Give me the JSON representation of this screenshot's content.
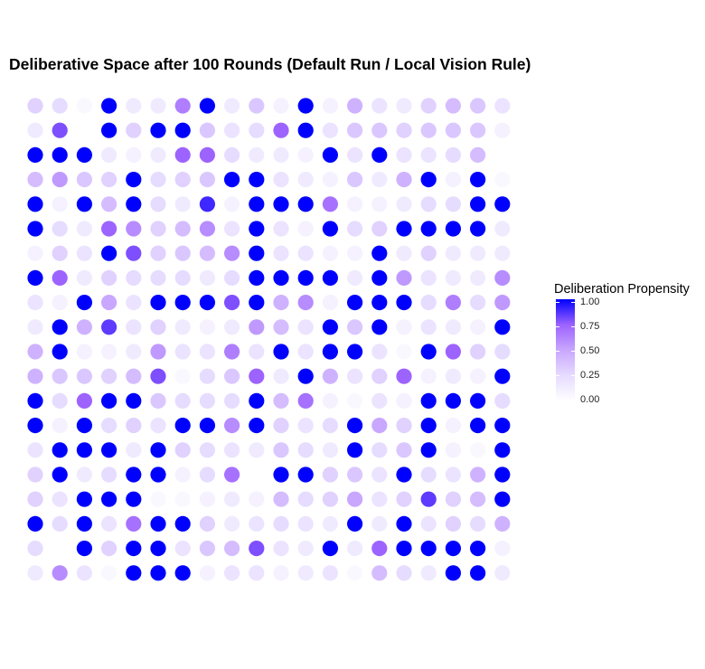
{
  "chart_data": {
    "type": "scatter",
    "title": "Deliberative Space after 100 Rounds (Default Run / Local Vision Rule)",
    "grid": false,
    "legend_position": "right",
    "color_scale": {
      "low": "#ffffff",
      "high": "#0000ff"
    },
    "legend": {
      "title": "Deliberation Propensity",
      "ticks": [
        "1.00",
        "0.75",
        "0.50",
        "0.25",
        "0.00"
      ]
    },
    "rows": 20,
    "cols": 20,
    "values": [
      [
        0.3,
        0.25,
        0.05,
        1,
        0.15,
        0.15,
        0.65,
        1,
        0.15,
        0.35,
        0.1,
        1,
        0.1,
        0.45,
        0.2,
        0.15,
        0.3,
        0.4,
        0.35,
        0.2
      ],
      [
        0.15,
        0.8,
        0.0,
        1,
        0.3,
        1,
        1,
        0.35,
        0.2,
        0.25,
        0.75,
        1,
        0.2,
        0.35,
        0.35,
        0.3,
        0.35,
        0.35,
        0.35,
        0.1
      ],
      [
        1,
        1,
        1,
        0.15,
        0.1,
        0.15,
        0.75,
        0.75,
        0.25,
        0.15,
        0.15,
        0.1,
        1,
        0.2,
        1,
        0.2,
        0.2,
        0.25,
        0.4,
        0.0
      ],
      [
        0.4,
        0.55,
        0.35,
        0.3,
        1,
        0.25,
        0.3,
        0.35,
        1,
        1,
        0.2,
        0.15,
        0.1,
        0.35,
        0.15,
        0.45,
        1,
        0.1,
        1,
        0.05
      ],
      [
        1,
        0.1,
        1,
        0.4,
        1,
        0.25,
        0.15,
        0.9,
        0.1,
        1,
        1,
        1,
        0.7,
        0.1,
        0.1,
        0.15,
        0.25,
        0.25,
        1,
        1
      ],
      [
        1,
        0.25,
        0.15,
        0.75,
        0.6,
        0.3,
        0.4,
        0.6,
        0.2,
        1,
        0.2,
        0.1,
        1,
        0.25,
        0.3,
        1,
        1,
        1,
        1,
        0.15
      ],
      [
        0.1,
        0.3,
        0.2,
        1,
        0.8,
        0.3,
        0.35,
        0.4,
        0.6,
        1,
        0.2,
        0.2,
        0.1,
        0.1,
        1,
        0.15,
        0.3,
        0.15,
        0.15,
        0.15
      ],
      [
        1,
        0.75,
        0.15,
        0.3,
        0.25,
        0.25,
        0.25,
        0.15,
        0.25,
        1,
        1,
        1,
        1,
        0.15,
        1,
        0.55,
        0.2,
        0.15,
        0.15,
        0.6
      ],
      [
        0.2,
        0.1,
        1,
        0.5,
        0.2,
        1,
        1,
        1,
        0.8,
        1,
        0.45,
        0.6,
        0.1,
        1,
        1,
        1,
        0.25,
        0.65,
        0.25,
        0.55
      ],
      [
        0.15,
        1,
        0.45,
        0.85,
        0.2,
        0.3,
        0.15,
        0.1,
        0.15,
        0.55,
        0.4,
        0.2,
        1,
        0.35,
        1,
        0.1,
        0.2,
        0.15,
        0.1,
        1
      ],
      [
        0.45,
        1,
        0.1,
        0.1,
        0.15,
        0.55,
        0.2,
        0.2,
        0.65,
        0.2,
        1,
        0.2,
        1,
        1,
        0.2,
        0.05,
        1,
        0.75,
        0.3,
        0.25
      ],
      [
        0.45,
        0.35,
        0.35,
        0.3,
        0.4,
        0.8,
        0.05,
        0.25,
        0.35,
        0.75,
        0.15,
        1,
        0.45,
        0.2,
        0.3,
        0.75,
        0.1,
        0.15,
        0.1,
        1
      ],
      [
        1,
        0.25,
        0.75,
        1,
        1,
        0.35,
        0.25,
        0.25,
        0.25,
        1,
        0.4,
        0.7,
        0.1,
        0.05,
        0.2,
        0.1,
        1,
        1,
        1,
        0.25
      ],
      [
        1,
        0.1,
        1,
        0.25,
        0.3,
        0.2,
        1,
        1,
        0.6,
        1,
        0.3,
        0.2,
        0.25,
        1,
        0.5,
        0.3,
        1,
        0.1,
        1,
        1
      ],
      [
        0.2,
        1,
        1,
        1,
        0.15,
        1,
        0.3,
        0.25,
        0.2,
        0.15,
        0.35,
        0.25,
        0.15,
        1,
        0.25,
        0.35,
        1,
        0.1,
        0.05,
        1
      ],
      [
        0.3,
        1,
        0.15,
        0.25,
        1,
        1,
        0.1,
        0.25,
        0.7,
        0.0,
        1,
        1,
        0.3,
        0.35,
        0.2,
        1,
        0.25,
        0.2,
        0.45,
        1
      ],
      [
        0.3,
        0.2,
        1,
        1,
        1,
        0.05,
        0.05,
        0.1,
        0.15,
        0.1,
        0.4,
        0.25,
        0.3,
        0.5,
        0.2,
        0.3,
        0.85,
        0.3,
        0.4,
        1
      ],
      [
        1,
        0.25,
        1,
        0.2,
        0.7,
        1,
        1,
        0.3,
        0.15,
        0.2,
        0.25,
        0.2,
        0.15,
        1,
        0.15,
        1,
        0.2,
        0.3,
        0.25,
        0.45
      ],
      [
        0.25,
        0.0,
        1,
        0.3,
        1,
        1,
        0.2,
        0.35,
        0.4,
        0.8,
        0.2,
        0.15,
        1,
        0.15,
        0.75,
        1,
        1,
        1,
        1,
        0.1
      ],
      [
        0.15,
        0.6,
        0.2,
        0.05,
        1,
        1,
        1,
        0.1,
        0.2,
        0.2,
        0.1,
        0.15,
        0.2,
        0.05,
        0.4,
        0.25,
        0.15,
        1,
        1,
        0.15
      ]
    ]
  }
}
